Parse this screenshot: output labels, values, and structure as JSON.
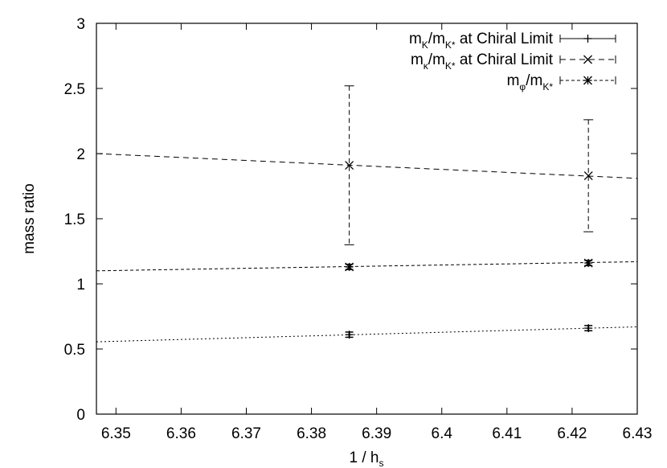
{
  "chart_data": {
    "type": "line",
    "xlabel": {
      "main": "1 / h",
      "sub": "s"
    },
    "ylabel": "mass ratio",
    "xlim": [
      6.347,
      6.43
    ],
    "ylim": [
      0,
      3
    ],
    "xticks": [
      "6.35",
      "6.36",
      "6.37",
      "6.38",
      "6.39",
      "6.4",
      "6.41",
      "6.42",
      "6.43"
    ],
    "yticks": [
      "0",
      "0.5",
      "1",
      "1.5",
      "2",
      "2.5",
      "3"
    ],
    "grid": false,
    "legend_position": "top-right",
    "series": [
      {
        "legend": {
          "m1": "m",
          "s1": "K",
          "slash": "/",
          "m2": "m",
          "s2": "K*",
          "rest": " at Chiral Limit"
        },
        "marker": "plus",
        "dash": "2,3",
        "points": [
          {
            "x": 6.3858,
            "y": 0.61,
            "err": 0.02
          },
          {
            "x": 6.4225,
            "y": 0.66,
            "err": 0.02
          }
        ],
        "fit_line": {
          "x": [
            6.347,
            6.43
          ],
          "y": [
            0.555,
            0.67
          ]
        }
      },
      {
        "legend": {
          "m1": "m",
          "s1": "κ",
          "slash": "/",
          "m2": "m",
          "s2": "K*",
          "rest": " at Chiral Limit"
        },
        "marker": "cross",
        "dash": "7,5",
        "points": [
          {
            "x": 6.3858,
            "y": 1.91,
            "err": 0.61
          },
          {
            "x": 6.4225,
            "y": 1.83,
            "err": 0.43
          }
        ],
        "fit_line": {
          "x": [
            6.347,
            6.43
          ],
          "y": [
            2.0,
            1.81
          ]
        }
      },
      {
        "legend": {
          "m1": "m",
          "s1": "φ",
          "slash": "/",
          "m2": "m",
          "s2": "K*",
          "rest": ""
        },
        "marker": "star",
        "dash": "4,3",
        "points": [
          {
            "x": 6.3858,
            "y": 1.13,
            "err": 0.02
          },
          {
            "x": 6.4225,
            "y": 1.16,
            "err": 0.02
          }
        ],
        "fit_line": {
          "x": [
            6.347,
            6.43
          ],
          "y": [
            1.1,
            1.17
          ]
        }
      }
    ]
  }
}
